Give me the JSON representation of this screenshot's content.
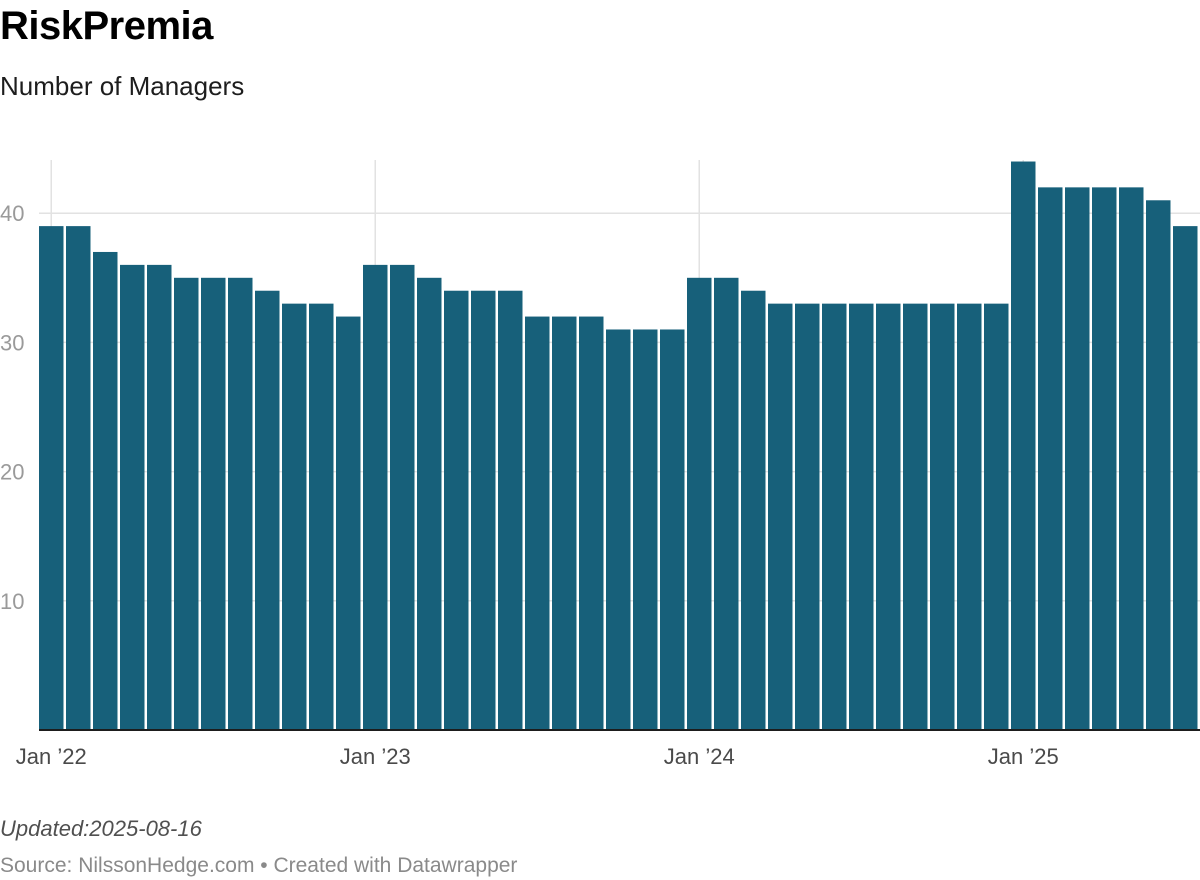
{
  "header": {
    "title": "RiskPremia",
    "subtitle": "Number of Managers"
  },
  "footer": {
    "updated_label": "Updated:",
    "updated_value": "2025-08-16",
    "source": "Source: NilssonHedge.com • Created with Datawrapper"
  },
  "colors": {
    "bar": "#17607a",
    "grid": "#e2e2e2",
    "baseline": "#1d1d1d"
  },
  "chart_data": {
    "type": "bar",
    "title": "RiskPremia",
    "subtitle": "Number of Managers",
    "xlabel": "",
    "ylabel": "",
    "ylim": [
      0,
      44
    ],
    "yticks": [
      10,
      20,
      30,
      40
    ],
    "x_start": "2022-01",
    "x_end": "2025-07",
    "x_tick_labels": [
      "Jan ’22",
      "Jan ’23",
      "Jan ’24",
      "Jan ’25"
    ],
    "grid": true,
    "categories": [
      "2022-01",
      "2022-02",
      "2022-03",
      "2022-04",
      "2022-05",
      "2022-06",
      "2022-07",
      "2022-08",
      "2022-09",
      "2022-10",
      "2022-11",
      "2022-12",
      "2023-01",
      "2023-02",
      "2023-03",
      "2023-04",
      "2023-05",
      "2023-06",
      "2023-07",
      "2023-08",
      "2023-09",
      "2023-10",
      "2023-11",
      "2023-12",
      "2024-01",
      "2024-02",
      "2024-03",
      "2024-04",
      "2024-05",
      "2024-06",
      "2024-07",
      "2024-08",
      "2024-09",
      "2024-10",
      "2024-11",
      "2024-12",
      "2025-01",
      "2025-02",
      "2025-03",
      "2025-04",
      "2025-05",
      "2025-06",
      "2025-07"
    ],
    "values": [
      39,
      39,
      37,
      36,
      36,
      35,
      35,
      35,
      34,
      33,
      33,
      32,
      36,
      36,
      35,
      34,
      34,
      34,
      32,
      32,
      32,
      31,
      31,
      31,
      35,
      35,
      34,
      33,
      33,
      33,
      33,
      33,
      33,
      33,
      33,
      33,
      44,
      42,
      42,
      42,
      42,
      41,
      39
    ]
  }
}
